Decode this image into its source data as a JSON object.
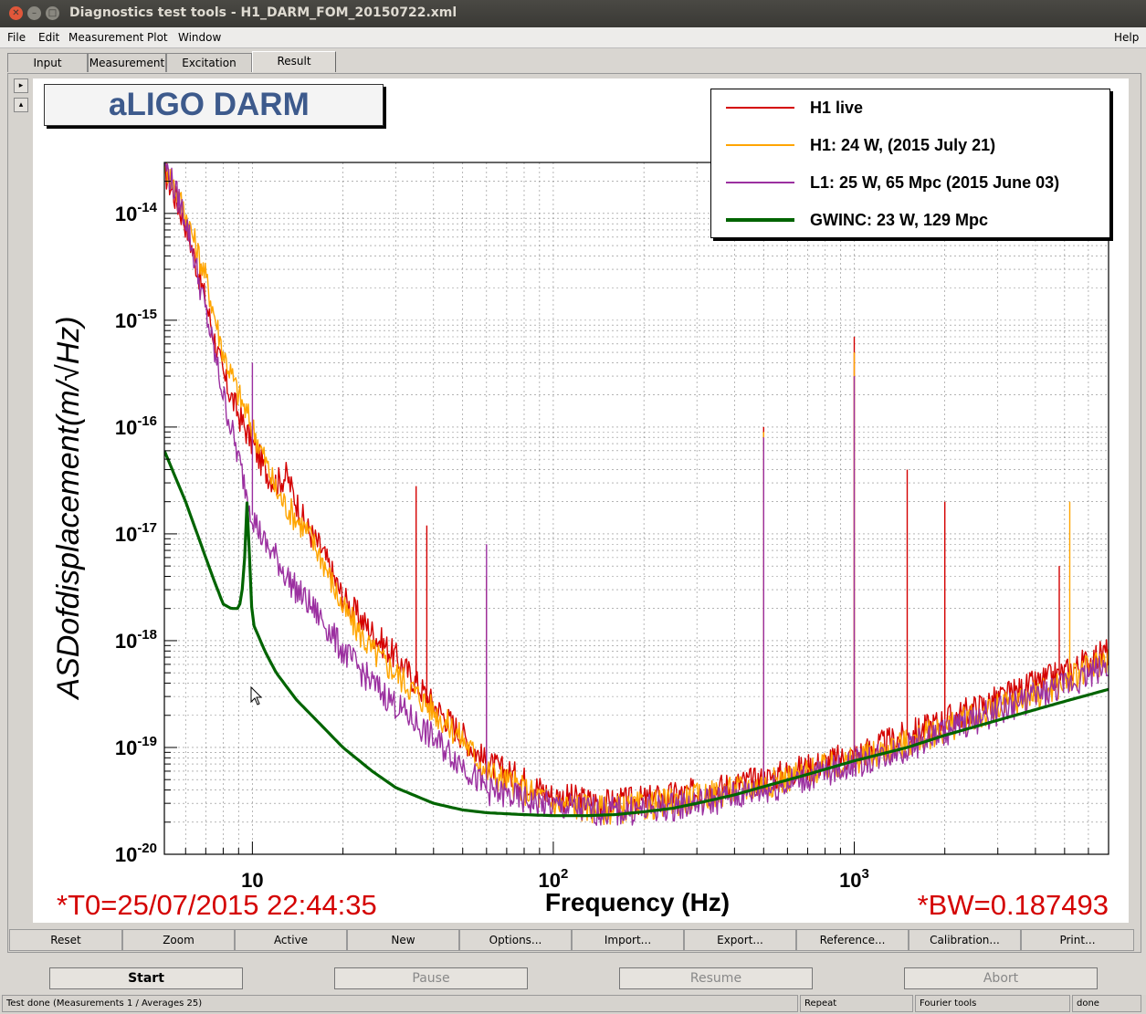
{
  "window": {
    "title": "Diagnostics test tools - H1_DARM_FOM_20150722.xml"
  },
  "menubar": {
    "file": "File",
    "edit": "Edit",
    "measurement": "Measurement",
    "plot": "Plot",
    "window": "Window",
    "help": "Help"
  },
  "tabs": {
    "input": "Input",
    "measurement": "Measurement",
    "excitation": "Excitation",
    "result": "Result"
  },
  "plot": {
    "title_box": "aLIGO DARM",
    "t0": "*T0=25/07/2015 22:44:35",
    "bw": "*BW=0.187493",
    "legend": [
      {
        "label": "H1 live",
        "color": "#d40000"
      },
      {
        "label": "H1: 24 W, (2015 July 21)",
        "color": "#ffa500"
      },
      {
        "label": "L1: 25 W, 65 Mpc (2015 June 03)",
        "color": "#9b30a0"
      },
      {
        "label": "GWINC: 23 W, 129 Mpc",
        "color": "#006400"
      }
    ]
  },
  "chart_data": {
    "type": "line",
    "title": "",
    "xlabel": "Frequency (Hz)",
    "ylabel": "ASDofdisplacement(m/√Hz)",
    "x_scale": "log",
    "y_scale": "log",
    "xlim": [
      5.1,
      7000
    ],
    "ylim": [
      1e-20,
      3e-14
    ],
    "x_ticks": [
      {
        "value": 10,
        "base": "10",
        "exp": ""
      },
      {
        "value": 100,
        "base": "10",
        "exp": "2"
      },
      {
        "value": 1000,
        "base": "10",
        "exp": "3"
      }
    ],
    "y_ticks": [
      {
        "value": 1e-20,
        "base": "10",
        "exp": "-20"
      },
      {
        "value": 1e-19,
        "base": "10",
        "exp": "-19"
      },
      {
        "value": 1e-18,
        "base": "10",
        "exp": "-18"
      },
      {
        "value": 1e-17,
        "base": "10",
        "exp": "-17"
      },
      {
        "value": 1e-16,
        "base": "10",
        "exp": "-16"
      },
      {
        "value": 1e-15,
        "base": "10",
        "exp": "-15"
      },
      {
        "value": 1e-14,
        "base": "10",
        "exp": "-14"
      }
    ],
    "grid": true,
    "legend_position": "top-right",
    "series": [
      {
        "name": "H1 live",
        "color": "#d40000",
        "x": [
          5.1,
          6,
          7,
          8,
          9,
          10,
          11,
          12,
          13,
          14,
          15,
          17,
          20,
          25,
          30,
          40,
          50,
          60,
          80,
          100,
          150,
          200,
          300,
          400,
          500,
          700,
          1000,
          1500,
          2000,
          3000,
          5000,
          7000
        ],
        "y": [
          2.5e-14,
          8e-15,
          1.5e-15,
          3e-16,
          1.3e-16,
          7e-17,
          4e-17,
          3e-17,
          3.5e-17,
          2e-17,
          1.2e-17,
          7e-18,
          2.5e-18,
          1.2e-18,
          7e-19,
          2.5e-19,
          1.3e-19,
          7e-20,
          5e-20,
          3.5e-20,
          3e-20,
          3.2e-20,
          3.8e-20,
          4.5e-20,
          5e-20,
          6.5e-20,
          8.5e-20,
          1.3e-19,
          1.8e-19,
          2.8e-19,
          5e-19,
          8e-19
        ],
        "peaks": [
          {
            "x": 35,
            "y": 2.8e-17
          },
          {
            "x": 38,
            "y": 1.2e-17
          },
          {
            "x": 60,
            "y": 4e-18
          },
          {
            "x": 500,
            "y": 1e-16
          },
          {
            "x": 1000,
            "y": 7e-16
          },
          {
            "x": 1500,
            "y": 4e-17
          },
          {
            "x": 2000,
            "y": 2e-17
          },
          {
            "x": 4800,
            "y": 5e-18
          }
        ]
      },
      {
        "name": "H1: 24 W, (2015 July 21)",
        "color": "#ffa500",
        "x": [
          5.1,
          6,
          7,
          8,
          9,
          10,
          11,
          12,
          13,
          14,
          15,
          17,
          20,
          25,
          30,
          40,
          50,
          60,
          80,
          100,
          150,
          200,
          300,
          400,
          500,
          700,
          1000,
          1500,
          2000,
          3000,
          5000,
          7000
        ],
        "y": [
          3e-14,
          1e-14,
          2.5e-15,
          5e-16,
          2e-16,
          1e-16,
          5e-17,
          2.5e-17,
          1.8e-17,
          1.4e-17,
          1.1e-17,
          6e-18,
          2e-18,
          8e-19,
          5e-19,
          2.2e-19,
          1.2e-19,
          6e-20,
          4e-20,
          3e-20,
          2.6e-20,
          2.8e-20,
          3.4e-20,
          4e-20,
          4.5e-20,
          5.8e-20,
          7.5e-20,
          1.1e-19,
          1.5e-19,
          2.3e-19,
          4e-19,
          7e-19
        ],
        "peaks": [
          {
            "x": 500,
            "y": 9e-17
          },
          {
            "x": 1000,
            "y": 5e-16
          },
          {
            "x": 5200,
            "y": 2e-17
          }
        ]
      },
      {
        "name": "L1: 25 W, 65 Mpc (2015 June 03)",
        "color": "#9b30a0",
        "x": [
          5.1,
          6,
          7,
          8,
          9,
          10,
          11,
          12,
          13,
          14,
          15,
          17,
          20,
          25,
          30,
          40,
          50,
          60,
          80,
          100,
          150,
          200,
          300,
          400,
          500,
          700,
          1000,
          1500,
          2000,
          3000,
          5000,
          7000
        ],
        "y": [
          3e-14,
          9e-15,
          1.2e-15,
          2e-16,
          5e-17,
          1.5e-17,
          8e-18,
          6e-18,
          4e-18,
          3e-18,
          2.4e-18,
          1.6e-18,
          8e-19,
          4e-19,
          2.5e-19,
          1.2e-19,
          7e-20,
          4e-20,
          3.2e-20,
          2.8e-20,
          2.5e-20,
          2.6e-20,
          3e-20,
          3.5e-20,
          4e-20,
          5.2e-20,
          7e-20,
          1e-19,
          1.4e-19,
          2.2e-19,
          3.8e-19,
          6e-19
        ],
        "peaks": [
          {
            "x": 10,
            "y": 4e-16
          },
          {
            "x": 60,
            "y": 8e-18
          },
          {
            "x": 500,
            "y": 8e-17
          },
          {
            "x": 1000,
            "y": 3e-16
          }
        ]
      },
      {
        "name": "GWINC: 23 W, 129 Mpc",
        "color": "#006400",
        "x": [
          5.1,
          6,
          7,
          7.5,
          8,
          8.5,
          9,
          9.2,
          9.4,
          9.6,
          10,
          11,
          12,
          14,
          17,
          20,
          25,
          30,
          40,
          50,
          60,
          80,
          100,
          130,
          160,
          200,
          250,
          300,
          400,
          500,
          700,
          1000,
          1500,
          2000,
          3000,
          5000,
          7000
        ],
        "y": [
          6e-17,
          2e-17,
          6e-18,
          3.5e-18,
          2.2e-18,
          2e-18,
          2e-18,
          2.5e-18,
          5e-18,
          2e-17,
          1.5e-18,
          8e-19,
          5e-19,
          2.8e-19,
          1.6e-19,
          1e-19,
          6e-20,
          4.2e-20,
          3e-20,
          2.6e-20,
          2.45e-20,
          2.35e-20,
          2.3e-20,
          2.3e-20,
          2.35e-20,
          2.5e-20,
          2.7e-20,
          3e-20,
          3.6e-20,
          4.3e-20,
          5.6e-20,
          7.5e-20,
          1e-19,
          1.3e-19,
          1.8e-19,
          2.7e-19,
          3.5e-19
        ]
      }
    ]
  },
  "toolbar": {
    "reset": "Reset",
    "zoom": "Zoom",
    "active": "Active",
    "new": "New",
    "options": "Options...",
    "import": "Import...",
    "export": "Export...",
    "reference": "Reference...",
    "calibration": "Calibration...",
    "print": "Print..."
  },
  "controls": {
    "start": "Start",
    "pause": "Pause",
    "resume": "Resume",
    "abort": "Abort"
  },
  "status": {
    "message": "Test done (Measurements 1 / Averages 25)",
    "repeat": "Repeat",
    "tool": "Fourier tools",
    "state": "done"
  }
}
